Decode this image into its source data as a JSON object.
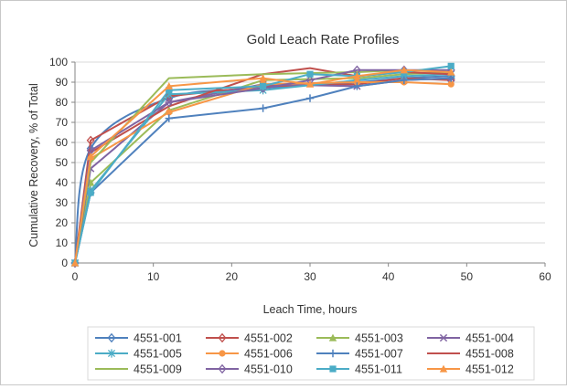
{
  "chart_data": {
    "type": "line",
    "title": "Gold Leach Rate Profiles",
    "xlabel": "Leach Time, hours",
    "ylabel": "Cumulative Recovery, % of Total",
    "xlim": [
      0,
      60
    ],
    "ylim": [
      0,
      100
    ],
    "xticks": [
      0,
      10,
      20,
      30,
      40,
      50,
      60
    ],
    "yticks": [
      0,
      10,
      20,
      30,
      40,
      50,
      60,
      70,
      80,
      90,
      100
    ],
    "grid": true,
    "legend_position": "bottom",
    "series": [
      {
        "name": "4551-001",
        "color": "#4F81BD",
        "marker": "diamond",
        "smooth": true,
        "x": [
          0,
          2,
          12,
          24,
          36,
          42,
          48
        ],
        "y": [
          0,
          57,
          82,
          87,
          90,
          92,
          93
        ]
      },
      {
        "name": "4551-002",
        "color": "#C0504D",
        "marker": "diamond",
        "smooth": false,
        "x": [
          0,
          2,
          12,
          24,
          36,
          42,
          48
        ],
        "y": [
          0,
          61,
          83,
          88,
          89,
          92,
          91
        ]
      },
      {
        "name": "4551-003",
        "color": "#9BBB59",
        "marker": "triangle",
        "smooth": false,
        "x": [
          0,
          2,
          12,
          24,
          36,
          42,
          48
        ],
        "y": [
          0,
          40,
          76,
          91,
          92,
          94,
          95
        ]
      },
      {
        "name": "4551-004",
        "color": "#8064A2",
        "marker": "x",
        "smooth": false,
        "x": [
          0,
          2,
          12,
          24,
          36,
          42,
          48
        ],
        "y": [
          0,
          47,
          80,
          89,
          88,
          91,
          92
        ]
      },
      {
        "name": "4551-005",
        "color": "#4BACC6",
        "marker": "asterisk",
        "smooth": false,
        "x": [
          0,
          2,
          12,
          24,
          36,
          42,
          48
        ],
        "y": [
          0,
          36,
          84,
          86,
          91,
          93,
          94
        ]
      },
      {
        "name": "4551-006",
        "color": "#F79646",
        "marker": "circle",
        "smooth": false,
        "x": [
          0,
          2,
          12,
          24,
          36,
          42,
          48
        ],
        "y": [
          0,
          52,
          75,
          89,
          90,
          90,
          89
        ]
      },
      {
        "name": "4551-007",
        "color": "#4F81BD",
        "marker": "plus",
        "smooth": false,
        "x": [
          0,
          2,
          12,
          24,
          30,
          36,
          42,
          48
        ],
        "y": [
          0,
          35,
          72,
          77,
          82,
          88,
          91,
          92
        ]
      },
      {
        "name": "4551-008",
        "color": "#C0504D",
        "marker": "none",
        "smooth": false,
        "x": [
          0,
          2,
          12,
          24,
          30,
          36,
          42,
          48
        ],
        "y": [
          0,
          55,
          78,
          94,
          97,
          93,
          95,
          94
        ]
      },
      {
        "name": "4551-009",
        "color": "#9BBB59",
        "marker": "none",
        "smooth": false,
        "x": [
          0,
          2,
          12,
          24,
          36,
          42,
          48
        ],
        "y": [
          0,
          50,
          92,
          94,
          95,
          96,
          95
        ]
      },
      {
        "name": "4551-010",
        "color": "#8064A2",
        "marker": "diamond",
        "smooth": false,
        "x": [
          0,
          2,
          12,
          24,
          30,
          36,
          42,
          48
        ],
        "y": [
          0,
          56,
          80,
          87,
          91,
          96,
          96,
          96
        ]
      },
      {
        "name": "4551-011",
        "color": "#4BACC6",
        "marker": "square",
        "smooth": false,
        "x": [
          0,
          2,
          12,
          24,
          30,
          36,
          42,
          48
        ],
        "y": [
          0,
          35,
          86,
          88,
          94,
          93,
          95,
          98
        ]
      },
      {
        "name": "4551-012",
        "color": "#F79646",
        "marker": "triangle",
        "smooth": false,
        "x": [
          0,
          2,
          12,
          24,
          30,
          36,
          42,
          48
        ],
        "y": [
          0,
          53,
          88,
          92,
          89,
          93,
          96,
          95
        ]
      }
    ]
  }
}
